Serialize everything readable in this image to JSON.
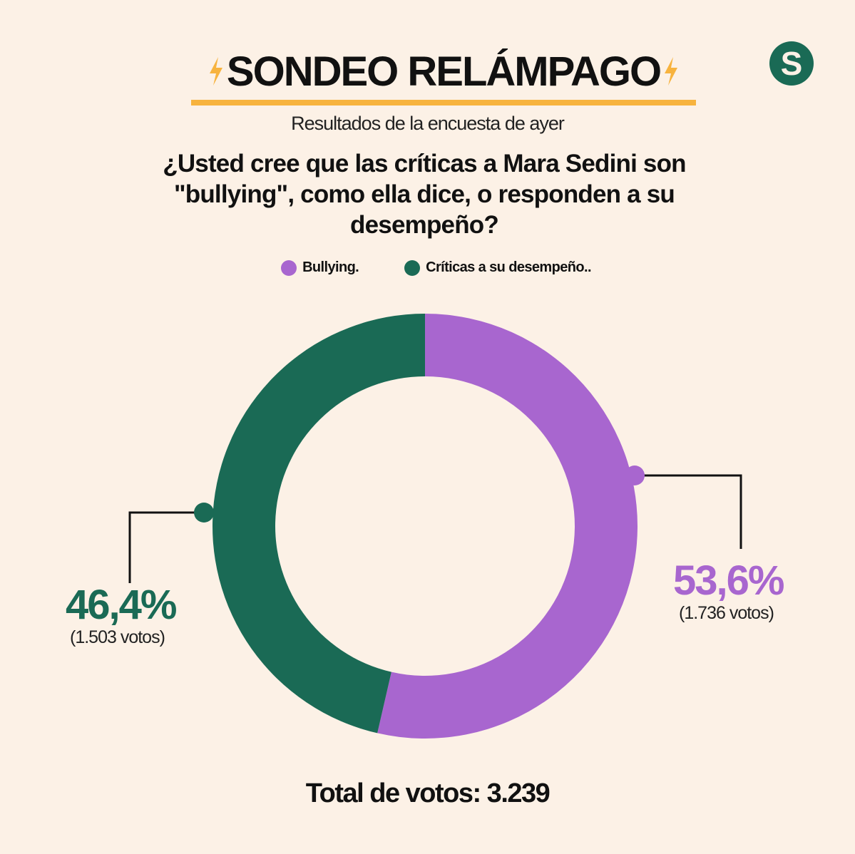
{
  "header": {
    "title": "SONDEO RELÁMPAGO",
    "subtitle": "Resultados de la encuesta de ayer",
    "logo_letter": "S",
    "accent_color": "#f7b33e",
    "brand_color": "#1a6a55"
  },
  "question": "¿Usted cree que las críticas a Mara Sedini son \"bullying\", como ella dice, o responden a su desempeño?",
  "chart_data": {
    "type": "pie",
    "donut": true,
    "series": [
      {
        "name": "Bullying.",
        "value": 53.6,
        "votes": 1736,
        "pct_label": "53,6%",
        "votes_label": "(1.736 votos)",
        "color": "#a866cf"
      },
      {
        "name": "Críticas a su desempeño..",
        "value": 46.4,
        "votes": 1503,
        "pct_label": "46,4%",
        "votes_label": "(1.503 votos)",
        "color": "#1a6a55"
      }
    ],
    "legend_position": "top-center",
    "total_label": "Total de votos: 3.239"
  }
}
